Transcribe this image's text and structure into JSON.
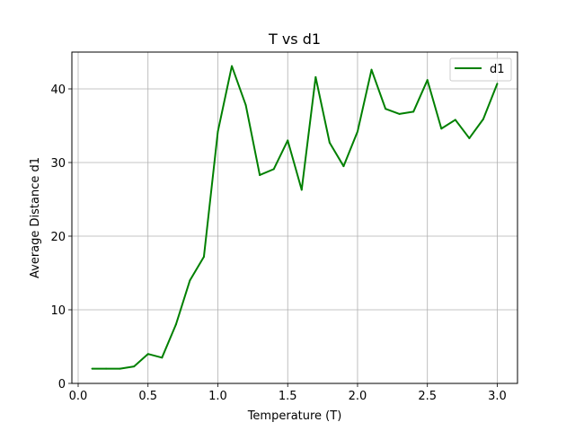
{
  "chart_data": {
    "type": "line",
    "title": "T vs d1",
    "xlabel": "Temperature (T)",
    "ylabel": "Average Distance d1",
    "xlim": [
      -0.045,
      3.145
    ],
    "ylim": [
      0,
      45
    ],
    "xticks": [
      0.0,
      0.5,
      1.0,
      1.5,
      2.0,
      2.5,
      3.0
    ],
    "xtick_labels": [
      "0.0",
      "0.5",
      "1.0",
      "1.5",
      "2.0",
      "2.5",
      "3.0"
    ],
    "yticks": [
      0,
      10,
      20,
      30,
      40
    ],
    "ytick_labels": [
      "0",
      "10",
      "20",
      "30",
      "40"
    ],
    "grid": true,
    "legend_position": "top-right",
    "series": [
      {
        "name": "d1",
        "color": "#008000",
        "x": [
          0.1,
          0.2,
          0.3,
          0.4,
          0.5,
          0.6,
          0.7,
          0.8,
          0.9,
          1.0,
          1.1,
          1.2,
          1.3,
          1.4,
          1.5,
          1.6,
          1.7,
          1.8,
          1.9,
          2.0,
          2.1,
          2.2,
          2.3,
          2.4,
          2.5,
          2.6,
          2.7,
          2.8,
          2.9,
          3.0
        ],
        "y": [
          2.0,
          2.0,
          2.0,
          2.3,
          4.0,
          3.5,
          8.0,
          14.0,
          17.2,
          34.2,
          43.1,
          37.8,
          28.3,
          29.1,
          33.0,
          26.3,
          41.6,
          32.7,
          29.5,
          34.2,
          42.6,
          37.3,
          36.6,
          36.9,
          41.2,
          34.6,
          35.8,
          33.3,
          35.9,
          40.7
        ]
      }
    ]
  }
}
